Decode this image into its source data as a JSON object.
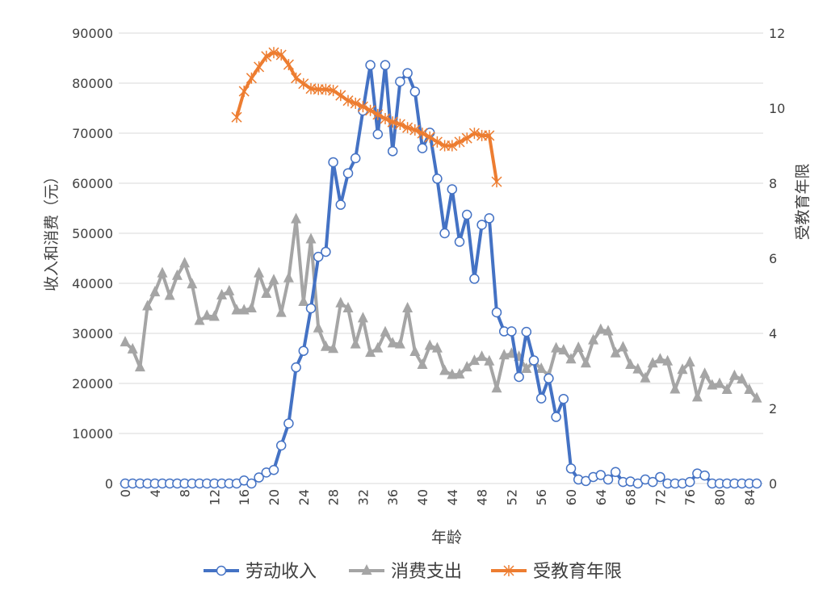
{
  "chart_data": {
    "type": "line",
    "xlabel": "年龄",
    "ylabel": "收入和消费（元）",
    "y2label": "受教育年限",
    "xlim": [
      0,
      85
    ],
    "ylim": [
      0,
      90000
    ],
    "y2lim": [
      0,
      12
    ],
    "x_ticks": [
      0,
      4,
      8,
      12,
      16,
      20,
      24,
      28,
      32,
      36,
      40,
      44,
      48,
      52,
      56,
      60,
      64,
      68,
      72,
      76,
      80,
      84
    ],
    "y_ticks": [
      0,
      10000,
      20000,
      30000,
      40000,
      50000,
      60000,
      70000,
      80000,
      90000
    ],
    "y2_ticks": [
      0,
      2,
      4,
      6,
      8,
      10,
      12
    ],
    "grid": true,
    "legend": "bottom",
    "series": [
      {
        "name": "劳动收入",
        "axis": "left",
        "color": "#4472C4",
        "marker": "circle",
        "x_start": 0,
        "values": [
          0,
          0,
          0,
          0,
          0,
          0,
          0,
          0,
          0,
          0,
          0,
          0,
          0,
          0,
          0,
          0,
          600,
          0,
          1200,
          2200,
          2700,
          7600,
          12000,
          23200,
          26500,
          35000,
          45300,
          46300,
          64200,
          55700,
          62000,
          65000,
          74500,
          83600,
          69800,
          83600,
          66400,
          80300,
          82000,
          78300,
          67000,
          70100,
          60900,
          50000,
          58800,
          48300,
          53700,
          40900,
          51700,
          53000,
          34200,
          30400,
          30400,
          21300,
          30300,
          24600,
          17000,
          21000,
          13300,
          16900,
          3000,
          800,
          500,
          1300,
          1700,
          800,
          2300,
          300,
          400,
          0,
          800,
          300,
          1300,
          0,
          0,
          0,
          300,
          2000,
          1600,
          0,
          0,
          0,
          0,
          0,
          0,
          0
        ]
      },
      {
        "name": "消费支出",
        "axis": "left",
        "color": "#A5A5A5",
        "marker": "triangle",
        "x_start": 0,
        "values": [
          28200,
          26800,
          23200,
          35400,
          38200,
          42000,
          37500,
          41500,
          44000,
          39800,
          32500,
          33500,
          33300,
          37600,
          38400,
          34600,
          34600,
          35000,
          42000,
          37900,
          40600,
          34100,
          41000,
          52800,
          36300,
          48800,
          31000,
          27300,
          26900,
          36000,
          35000,
          27800,
          33000,
          26100,
          27000,
          30200,
          28000,
          27800,
          35000,
          26300,
          23700,
          27500,
          27000,
          22500,
          21700,
          21800,
          23200,
          24500,
          25300,
          24400,
          19000,
          25600,
          25900,
          25300,
          22900,
          24400,
          22900,
          21600,
          27000,
          26600,
          24800,
          27100,
          24000,
          28600,
          30700,
          30400,
          26000,
          27200,
          23700,
          22800,
          21000,
          24000,
          24800,
          24400,
          18800,
          22700,
          24200,
          17200,
          21900,
          19600,
          19900,
          18700,
          21500,
          20800,
          18700,
          17000
        ]
      },
      {
        "name": "受教育年限",
        "axis": "right",
        "color": "#ED7D31",
        "marker": "star",
        "x_start": 15,
        "values": [
          9.76,
          10.45,
          10.8,
          11.1,
          11.38,
          11.48,
          11.42,
          11.16,
          10.8,
          10.65,
          10.52,
          10.5,
          10.5,
          10.47,
          10.34,
          10.2,
          10.13,
          10.04,
          9.94,
          9.83,
          9.72,
          9.63,
          9.57,
          9.48,
          9.42,
          9.33,
          9.23,
          9.1,
          9.0,
          9.0,
          9.1,
          9.2,
          9.33,
          9.27,
          9.27,
          8.04
        ]
      }
    ]
  }
}
